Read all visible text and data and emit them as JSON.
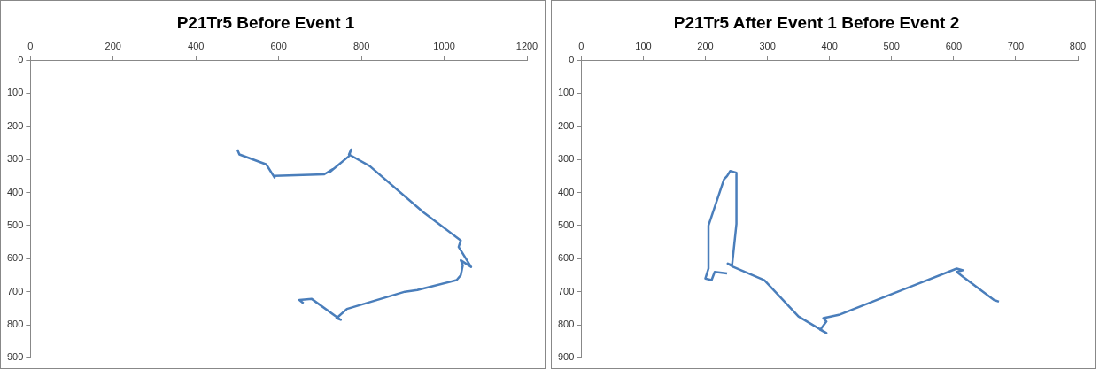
{
  "chart_data": [
    {
      "type": "line",
      "title": "P21Tr5 Before Event 1",
      "marker": "none",
      "grid": false,
      "legend": false,
      "xlim": [
        0,
        1200
      ],
      "xticks": [
        0,
        200,
        400,
        600,
        800,
        1000,
        1200
      ],
      "ylim": [
        900,
        0
      ],
      "yticks": [
        0,
        100,
        200,
        300,
        400,
        500,
        600,
        700,
        800,
        900
      ],
      "series": [
        {
          "color": "#4a7ebb",
          "x": [
            500,
            505,
            570,
            590,
            590,
            710,
            730,
            722,
            770,
            775,
            770,
            820,
            950,
            1040,
            1035,
            1065,
            1040,
            1045,
            1040,
            1030,
            935,
            905,
            765,
            740,
            750,
            680,
            650,
            660
          ],
          "values": [
            270,
            285,
            315,
            355,
            350,
            345,
            330,
            340,
            290,
            270,
            285,
            320,
            460,
            545,
            565,
            625,
            605,
            620,
            650,
            665,
            695,
            700,
            752,
            780,
            785,
            722,
            725,
            735
          ]
        }
      ]
    },
    {
      "type": "line",
      "title": "P21Tr5 After Event 1 Before Event 2",
      "marker": "none",
      "grid": false,
      "legend": false,
      "xlim": [
        0,
        800
      ],
      "xticks": [
        0,
        100,
        200,
        300,
        400,
        500,
        600,
        700,
        800
      ],
      "ylim": [
        900,
        0
      ],
      "yticks": [
        0,
        100,
        200,
        300,
        400,
        500,
        600,
        700,
        800,
        900
      ],
      "series": [
        {
          "color": "#4a7ebb",
          "x": [
            673,
            665,
            615,
            605,
            615,
            605,
            510,
            415,
            390,
            395,
            385,
            395,
            350,
            295,
            245,
            236,
            243,
            250,
            250,
            240,
            235,
            230,
            205,
            205,
            200,
            210,
            215,
            235
          ],
          "values": [
            730,
            725,
            655,
            640,
            635,
            630,
            700,
            770,
            780,
            790,
            815,
            825,
            775,
            665,
            625,
            615,
            620,
            495,
            340,
            335,
            350,
            360,
            500,
            630,
            660,
            665,
            640,
            645
          ]
        }
      ]
    }
  ]
}
